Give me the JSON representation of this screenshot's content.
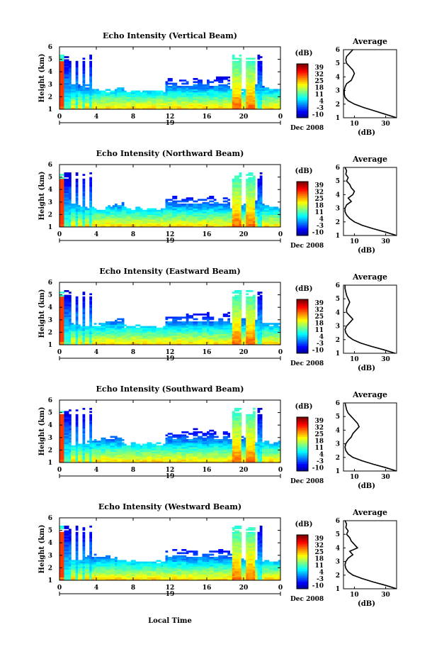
{
  "figure": {
    "x_axis_label": "Local Time",
    "date_label": "19",
    "month_year_label": "Dec 2008"
  },
  "chart_data": [
    {
      "type": "heatmap",
      "title": "Echo Intensity (Vertical Beam)",
      "ylabel": "Height (km)",
      "xlabel": "Local Time",
      "x_ticks": [
        "0",
        "4",
        "8",
        "12",
        "16",
        "20",
        "0"
      ],
      "x_range_hours": [
        0,
        24
      ],
      "y_ticks": [
        "1",
        "2",
        "3",
        "4",
        "5",
        "6"
      ],
      "ylim_km": [
        1,
        6
      ],
      "colorbar": {
        "label": "(dB)",
        "ticks": [
          "39",
          "32",
          "25",
          "18",
          "11",
          "4",
          "-3",
          "-10"
        ],
        "range_db": [
          -10,
          39
        ]
      },
      "profile": {
        "title": "Average",
        "xlabel": "(dB)",
        "x_ticks": [
          "10",
          "30"
        ],
        "xlim": [
          3,
          37
        ],
        "heights_km": [
          1.0,
          1.25,
          1.5,
          1.75,
          2.0,
          2.25,
          2.5,
          2.75,
          3.0,
          3.25,
          3.5,
          3.75,
          4.0,
          4.25,
          4.5,
          4.75,
          5.0,
          5.25,
          5.5,
          5.75,
          6.0
        ],
        "values_db": [
          37,
          30,
          23,
          16,
          10,
          6,
          4,
          3.5,
          3.5,
          4,
          5,
          8,
          9,
          10,
          9,
          7,
          5,
          4.5,
          5,
          7,
          9
        ]
      }
    },
    {
      "type": "heatmap",
      "title": "Echo Intensity (Northward Beam)",
      "ylabel": "Height (km)",
      "xlabel": "Local Time",
      "x_ticks": [
        "0",
        "4",
        "8",
        "12",
        "16",
        "20",
        "0"
      ],
      "x_range_hours": [
        0,
        24
      ],
      "y_ticks": [
        "1",
        "2",
        "3",
        "4",
        "5",
        "6"
      ],
      "ylim_km": [
        1,
        6
      ],
      "colorbar": {
        "label": "(dB)",
        "ticks": [
          "39",
          "32",
          "25",
          "18",
          "11",
          "4",
          "-3",
          "-10"
        ],
        "range_db": [
          -10,
          39
        ]
      },
      "profile": {
        "title": "Average",
        "xlabel": "(dB)",
        "x_ticks": [
          "10",
          "30"
        ],
        "xlim": [
          3,
          37
        ],
        "heights_km": [
          1.0,
          1.25,
          1.5,
          1.75,
          2.0,
          2.25,
          2.5,
          2.75,
          3.0,
          3.25,
          3.5,
          3.75,
          4.0,
          4.25,
          4.5,
          4.75,
          5.0,
          5.25,
          5.5,
          5.75,
          6.0
        ],
        "values_db": [
          37,
          30,
          22,
          15,
          10,
          7,
          5,
          4,
          4,
          5,
          8,
          6,
          9,
          10,
          8,
          7,
          5,
          6,
          4.5,
          5,
          4
        ]
      }
    },
    {
      "type": "heatmap",
      "title": "Echo Intensity (Eastward Beam)",
      "ylabel": "Height (km)",
      "xlabel": "Local Time",
      "x_ticks": [
        "0",
        "4",
        "8",
        "12",
        "16",
        "20",
        "0"
      ],
      "x_range_hours": [
        0,
        24
      ],
      "y_ticks": [
        "1",
        "2",
        "3",
        "4",
        "5",
        "6"
      ],
      "ylim_km": [
        1,
        6
      ],
      "colorbar": {
        "label": "(dB)",
        "ticks": [
          "39",
          "32",
          "25",
          "18",
          "11",
          "4",
          "-3",
          "-10"
        ],
        "range_db": [
          -10,
          39
        ]
      },
      "profile": {
        "title": "Average",
        "xlabel": "(dB)",
        "x_ticks": [
          "10",
          "30"
        ],
        "xlim": [
          3,
          37
        ],
        "heights_km": [
          1.0,
          1.25,
          1.5,
          1.75,
          2.0,
          2.25,
          2.5,
          2.75,
          3.0,
          3.25,
          3.5,
          3.75,
          4.0,
          4.25,
          4.5,
          4.75,
          5.0,
          5.25,
          5.5,
          5.75,
          6.0
        ],
        "values_db": [
          36,
          29,
          21,
          14,
          9,
          6,
          4.5,
          4,
          5,
          7,
          9,
          7,
          5,
          5,
          6,
          7,
          6,
          5,
          4.5,
          4,
          4
        ]
      }
    },
    {
      "type": "heatmap",
      "title": "Echo Intensity (Southward Beam)",
      "ylabel": "Height (km)",
      "xlabel": "Local Time",
      "x_ticks": [
        "0",
        "4",
        "8",
        "12",
        "16",
        "20",
        "0"
      ],
      "x_range_hours": [
        0,
        24
      ],
      "y_ticks": [
        "1",
        "2",
        "3",
        "4",
        "5",
        "6"
      ],
      "ylim_km": [
        1,
        6
      ],
      "colorbar": {
        "label": "(dB)",
        "ticks": [
          "39",
          "32",
          "25",
          "18",
          "11",
          "4",
          "-3",
          "-10"
        ],
        "range_db": [
          -10,
          39
        ]
      },
      "profile": {
        "title": "Average",
        "xlabel": "(dB)",
        "x_ticks": [
          "10",
          "30"
        ],
        "xlim": [
          3,
          37
        ],
        "heights_km": [
          1.0,
          1.25,
          1.5,
          1.75,
          2.0,
          2.25,
          2.5,
          2.75,
          3.0,
          3.25,
          3.5,
          3.75,
          4.0,
          4.25,
          4.5,
          4.75,
          5.0,
          5.25,
          5.5,
          5.75,
          6.0
        ],
        "values_db": [
          37,
          30,
          22,
          15,
          9,
          6,
          4.5,
          4,
          4.5,
          6,
          8,
          9,
          11,
          13,
          12,
          10,
          8,
          6,
          5,
          4.5,
          4
        ]
      }
    },
    {
      "type": "heatmap",
      "title": "Echo Intensity (Westward Beam)",
      "ylabel": "Height (km)",
      "xlabel": "Local Time",
      "x_ticks": [
        "0",
        "4",
        "8",
        "12",
        "16",
        "20",
        "0"
      ],
      "x_range_hours": [
        0,
        24
      ],
      "y_ticks": [
        "1",
        "2",
        "3",
        "4",
        "5",
        "6"
      ],
      "ylim_km": [
        1,
        6
      ],
      "colorbar": {
        "label": "(dB)",
        "ticks": [
          "39",
          "32",
          "25",
          "18",
          "11",
          "4",
          "-3",
          "-10"
        ],
        "range_db": [
          -10,
          39
        ]
      },
      "profile": {
        "title": "Average",
        "xlabel": "(dB)",
        "x_ticks": [
          "10",
          "30"
        ],
        "xlim": [
          3,
          37
        ],
        "heights_km": [
          1.0,
          1.25,
          1.5,
          1.75,
          2.0,
          2.25,
          2.5,
          2.75,
          3.0,
          3.25,
          3.5,
          3.75,
          4.0,
          4.25,
          4.5,
          4.75,
          5.0,
          5.25,
          5.5,
          5.75,
          6.0
        ],
        "values_db": [
          37,
          30,
          22,
          15,
          9,
          6,
          4.5,
          4,
          4.5,
          6,
          9,
          7,
          12,
          10,
          8,
          7,
          5,
          6,
          4.5,
          5,
          4
        ]
      }
    }
  ]
}
